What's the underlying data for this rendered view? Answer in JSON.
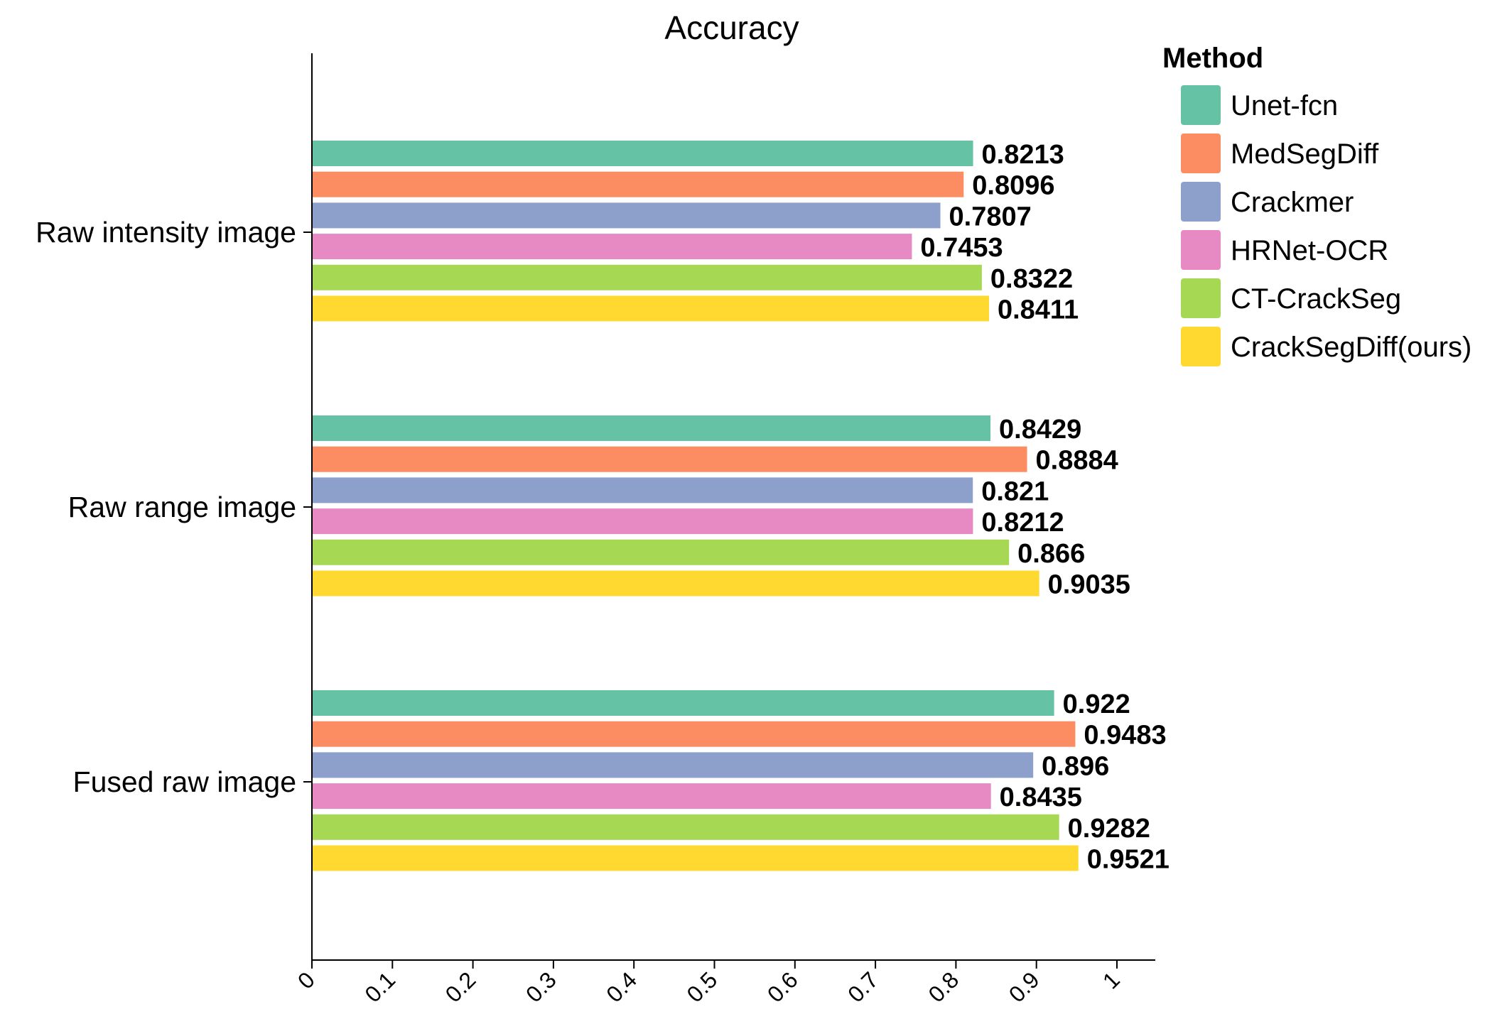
{
  "chart_data": {
    "type": "bar",
    "orientation": "horizontal",
    "title": "Accuracy",
    "xlabel": "",
    "ylabel": "",
    "xlim": [
      0,
      1.05
    ],
    "xticks": [
      0,
      0.1,
      0.2,
      0.3,
      0.4,
      0.5,
      0.6,
      0.7,
      0.8,
      0.9,
      1
    ],
    "xtick_labels": [
      "0",
      "0.1",
      "0.2",
      "0.3",
      "0.4",
      "0.5",
      "0.6",
      "0.7",
      "0.8",
      "0.9",
      "1"
    ],
    "categories": [
      "Raw intensity image",
      "Raw range image",
      "Fused raw image"
    ],
    "series": [
      {
        "name": "Unet-fcn",
        "color": "#66c2a5",
        "values": [
          0.8213,
          0.8429,
          0.922
        ],
        "labels": [
          "0.8213",
          "0.8429",
          "0.922"
        ]
      },
      {
        "name": "MedSegDiff",
        "color": "#fc8d62",
        "values": [
          0.8096,
          0.8884,
          0.9483
        ],
        "labels": [
          "0.8096",
          "0.8884",
          "0.9483"
        ]
      },
      {
        "name": "Crackmer",
        "color": "#8da0cb",
        "values": [
          0.7807,
          0.821,
          0.896
        ],
        "labels": [
          "0.7807",
          "0.821",
          "0.896"
        ]
      },
      {
        "name": "HRNet-OCR",
        "color": "#e78ac3",
        "values": [
          0.7453,
          0.8212,
          0.8435
        ],
        "labels": [
          "0.7453",
          "0.8212",
          "0.8435"
        ]
      },
      {
        "name": "CT-CrackSeg",
        "color": "#a6d854",
        "values": [
          0.8322,
          0.866,
          0.9282
        ],
        "labels": [
          "0.8322",
          "0.866",
          "0.9282"
        ]
      },
      {
        "name": "CrackSegDiff(ours)",
        "color": "#ffd92f",
        "values": [
          0.8411,
          0.9035,
          0.9521
        ],
        "labels": [
          "0.8411",
          "0.9035",
          "0.9521"
        ]
      }
    ],
    "legend": {
      "title": "Method",
      "position": "top-right, outside"
    },
    "grid": false
  }
}
